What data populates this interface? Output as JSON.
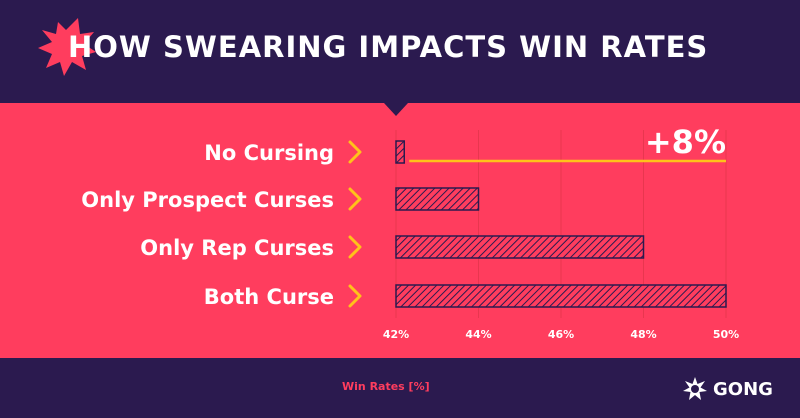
{
  "title": "HOW SWEARING IMPACTS WIN RATES",
  "colors": {
    "background": "#2b1a4f",
    "panel": "#ff3d5e",
    "accent": "#ffc21a",
    "bar_fill": "#ff3d5e",
    "bar_stroke": "#2b1a4f",
    "text": "#ffffff"
  },
  "logo": {
    "text": "GONG",
    "icon": "gong-burst-icon"
  },
  "annotation": {
    "text": "+8%",
    "icon": "chevron-right-icon"
  },
  "chart_data": {
    "type": "bar",
    "orientation": "horizontal",
    "title": "HOW SWEARING IMPACTS WIN RATES",
    "xlabel": "Win Rates [%]",
    "ylabel": "",
    "categories": [
      "No Cursing",
      "Only Prospect Curses",
      "Only Rep Curses",
      "Both Curse"
    ],
    "values": [
      42.2,
      44.0,
      48.0,
      50.0
    ],
    "xlim": [
      42,
      50
    ],
    "x_ticks": [
      "42%",
      "44%",
      "46%",
      "48%",
      "50%"
    ],
    "grid": true,
    "legend": "none",
    "annotation": "+8%"
  }
}
